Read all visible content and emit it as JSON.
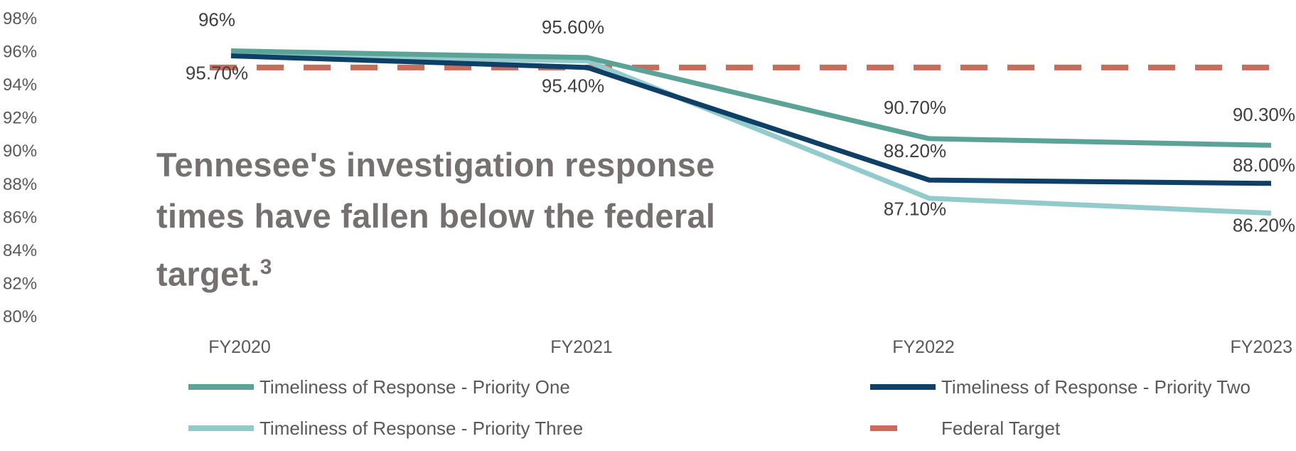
{
  "chart_data": {
    "type": "line",
    "title": "",
    "annotation_text": "Tennesee's investigation response times have fallen below the federal target.",
    "annotation_footnote": "3",
    "categories": [
      "FY2020",
      "FY2021",
      "FY2022",
      "FY2023"
    ],
    "ylim": [
      80,
      98
    ],
    "yticks": [
      "98%",
      "96%",
      "94%",
      "92%",
      "90%",
      "88%",
      "86%",
      "84%",
      "82%",
      "80%"
    ],
    "grid": false,
    "legend_position": "bottom",
    "series": [
      {
        "name": "Timeliness of Response - Priority One",
        "values": [
          96.0,
          95.6,
          90.7,
          90.3
        ],
        "labels": [
          "96%",
          "95.60%",
          "90.70%",
          "90.30%"
        ],
        "color": "#5BA397",
        "style": "solid"
      },
      {
        "name": "Timeliness of Response - Priority Two",
        "values": [
          95.7,
          95.0,
          88.2,
          88.0
        ],
        "labels": [
          "",
          "",
          "88.20%",
          "88.00%"
        ],
        "color": "#0E3F66",
        "style": "solid"
      },
      {
        "name": "Timeliness of Response - Priority Three",
        "values": [
          95.7,
          95.4,
          87.1,
          86.2
        ],
        "labels": [
          "95.70%",
          "95.40%",
          "87.10%",
          "86.20%"
        ],
        "color": "#93CBCC",
        "style": "solid"
      },
      {
        "name": "Federal Target",
        "values": [
          95,
          95,
          95,
          95
        ],
        "labels": [
          "",
          "",
          "",
          ""
        ],
        "color": "#CB6B5C",
        "style": "dashed"
      }
    ]
  }
}
